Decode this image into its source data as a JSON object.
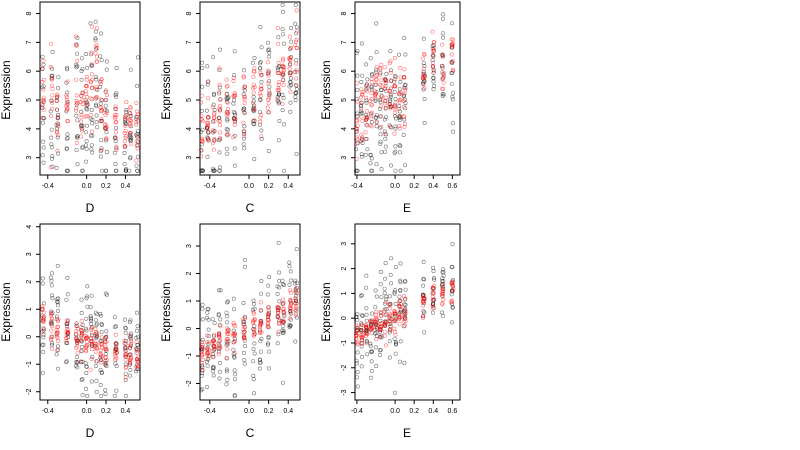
{
  "chart_data": [
    {
      "id": "p1",
      "type": "scatter",
      "xlabel": "D",
      "ylabel": "Expression",
      "xlim": [
        -0.48,
        0.55
      ],
      "ylim": [
        2.4,
        8.4
      ],
      "xticks": [
        -0.4,
        0.0,
        0.2,
        0.4
      ],
      "yticks": [
        3,
        4,
        5,
        6,
        7,
        8
      ],
      "xcols": [
        -0.45,
        -0.36,
        -0.3,
        -0.2,
        -0.1,
        -0.05,
        0.0,
        0.05,
        0.1,
        0.15,
        0.2,
        0.3,
        0.4,
        0.45,
        0.52
      ],
      "black": {
        "mean": [
          4.9,
          5.0,
          4.6,
          4.3,
          4.8,
          4.2,
          4.6,
          4.9,
          5.2,
          4.7,
          4.3,
          4.0,
          3.8,
          3.9,
          3.6
        ],
        "spread": [
          1.3,
          1.3,
          1.2,
          1.2,
          1.3,
          1.2,
          1.2,
          1.3,
          1.3,
          1.2,
          1.2,
          1.1,
          1.1,
          1.0,
          1.0
        ]
      },
      "red": {
        "mean": [
          5.6,
          5.1,
          4.7,
          4.5,
          5.3,
          4.5,
          5.0,
          5.6,
          6.1,
          5.0,
          4.3,
          3.9,
          4.0,
          4.1,
          3.8
        ],
        "spread": [
          0.7,
          0.7,
          0.6,
          0.6,
          0.7,
          0.6,
          0.6,
          0.7,
          0.8,
          0.6,
          0.6,
          0.6,
          0.6,
          0.5,
          0.5
        ]
      }
    },
    {
      "id": "p2",
      "type": "scatter",
      "xlabel": "C",
      "ylabel": "Expression",
      "xlim": [
        -0.5,
        0.52
      ],
      "ylim": [
        2.4,
        8.4
      ],
      "xticks": [
        -0.4,
        0.0,
        0.2,
        0.4
      ],
      "yticks": [
        3,
        4,
        5,
        6,
        7,
        8
      ],
      "xcols": [
        -0.48,
        -0.42,
        -0.36,
        -0.3,
        -0.22,
        -0.15,
        -0.05,
        0.05,
        0.12,
        0.2,
        0.3,
        0.35,
        0.42,
        0.48
      ],
      "black": {
        "mean": [
          3.8,
          3.6,
          3.6,
          4.1,
          4.4,
          4.4,
          4.8,
          4.8,
          5.0,
          5.1,
          5.4,
          5.6,
          5.8,
          6.0
        ],
        "spread": [
          1.2,
          1.1,
          1.2,
          1.2,
          1.2,
          1.2,
          1.2,
          1.2,
          1.2,
          1.2,
          1.2,
          1.2,
          1.2,
          1.2
        ]
      },
      "red": {
        "mean": [
          4.2,
          4.2,
          4.3,
          4.6,
          4.7,
          4.8,
          5.0,
          5.1,
          5.2,
          5.4,
          5.6,
          5.9,
          6.3,
          6.7
        ],
        "spread": [
          0.6,
          0.6,
          0.6,
          0.6,
          0.6,
          0.6,
          0.6,
          0.6,
          0.6,
          0.6,
          0.6,
          0.6,
          0.6,
          0.6
        ]
      }
    },
    {
      "id": "p3",
      "type": "scatter",
      "xlabel": "E",
      "ylabel": "Expression",
      "xlim": [
        -0.42,
        0.68
      ],
      "ylim": [
        2.4,
        8.4
      ],
      "xticks": [
        -0.4,
        0.0,
        0.2,
        0.4,
        0.6
      ],
      "yticks": [
        3,
        4,
        5,
        6,
        7,
        8
      ],
      "xcols": [
        -0.4,
        -0.35,
        -0.3,
        -0.25,
        -0.2,
        -0.15,
        -0.1,
        -0.05,
        0.0,
        0.05,
        0.1,
        0.3,
        0.4,
        0.5,
        0.6
      ],
      "black": {
        "mean": [
          4.2,
          4.3,
          4.4,
          4.5,
          4.6,
          4.7,
          4.8,
          4.8,
          4.7,
          4.8,
          4.9,
          5.8,
          6.2,
          6.3,
          6.0
        ],
        "spread": [
          1.2,
          1.2,
          1.2,
          1.2,
          1.2,
          1.2,
          1.2,
          1.2,
          1.2,
          1.2,
          1.2,
          0.8,
          0.7,
          0.7,
          0.8
        ]
      },
      "red": {
        "mean": [
          4.3,
          4.5,
          4.6,
          4.8,
          4.9,
          5.0,
          5.1,
          5.0,
          4.9,
          5.0,
          5.2,
          6.0,
          6.3,
          6.4,
          6.4
        ],
        "spread": [
          0.7,
          0.7,
          0.7,
          0.7,
          0.7,
          0.7,
          0.7,
          0.7,
          0.7,
          0.7,
          0.7,
          0.5,
          0.5,
          0.5,
          0.5
        ]
      }
    },
    {
      "id": "p4",
      "type": "scatter",
      "xlabel": "D",
      "ylabel": "Expression",
      "xlim": [
        -0.48,
        0.55
      ],
      "ylim": [
        -2.3,
        4.1
      ],
      "xticks": [
        -0.4,
        0.0,
        0.2,
        0.4
      ],
      "yticks": [
        -2,
        -1,
        0,
        1,
        2,
        3,
        4
      ],
      "xcols": [
        -0.45,
        -0.36,
        -0.3,
        -0.2,
        -0.1,
        -0.05,
        0.0,
        0.05,
        0.1,
        0.15,
        0.2,
        0.3,
        0.4,
        0.45,
        0.52
      ],
      "black": {
        "mean": [
          0.5,
          0.4,
          0.3,
          0.1,
          0.0,
          -0.1,
          -0.1,
          -0.2,
          -0.3,
          -0.3,
          -0.4,
          -0.5,
          -0.6,
          -0.6,
          -0.7
        ],
        "spread": [
          1.0,
          1.0,
          1.0,
          0.9,
          0.9,
          0.9,
          0.9,
          0.9,
          0.9,
          0.9,
          0.9,
          0.8,
          0.8,
          0.8,
          0.7
        ]
      },
      "red": {
        "mean": [
          0.5,
          0.35,
          0.2,
          0.1,
          0.05,
          -0.05,
          -0.15,
          -0.2,
          -0.25,
          -0.3,
          -0.4,
          -0.5,
          -0.6,
          -0.65,
          -0.75
        ],
        "spread": [
          0.3,
          0.3,
          0.3,
          0.3,
          0.3,
          0.3,
          0.3,
          0.3,
          0.3,
          0.3,
          0.3,
          0.3,
          0.3,
          0.3,
          0.3
        ]
      }
    },
    {
      "id": "p5",
      "type": "scatter",
      "xlabel": "C",
      "ylabel": "Expression",
      "xlim": [
        -0.5,
        0.52
      ],
      "ylim": [
        -2.6,
        3.8
      ],
      "xticks": [
        -0.4,
        0.0,
        0.2,
        0.4
      ],
      "yticks": [
        -2,
        -1,
        0,
        1,
        2,
        3
      ],
      "xcols": [
        -0.48,
        -0.42,
        -0.36,
        -0.3,
        -0.22,
        -0.15,
        -0.05,
        0.05,
        0.12,
        0.2,
        0.3,
        0.35,
        0.42,
        0.48
      ],
      "black": {
        "mean": [
          -1.0,
          -0.9,
          -0.8,
          -0.6,
          -0.4,
          -0.3,
          -0.1,
          0.0,
          0.1,
          0.2,
          0.4,
          0.5,
          0.6,
          0.7
        ],
        "spread": [
          1.0,
          1.0,
          1.0,
          1.0,
          1.0,
          1.0,
          1.0,
          1.0,
          1.0,
          1.0,
          1.0,
          1.0,
          1.0,
          1.0
        ]
      },
      "red": {
        "mean": [
          -0.9,
          -0.8,
          -0.7,
          -0.5,
          -0.35,
          -0.2,
          0.0,
          0.1,
          0.2,
          0.3,
          0.5,
          0.6,
          0.8,
          0.9
        ],
        "spread": [
          0.3,
          0.3,
          0.3,
          0.3,
          0.3,
          0.3,
          0.3,
          0.3,
          0.3,
          0.3,
          0.3,
          0.3,
          0.3,
          0.3
        ]
      }
    },
    {
      "id": "p6",
      "type": "scatter",
      "xlabel": "E",
      "ylabel": "Expression",
      "xlim": [
        -0.42,
        0.68
      ],
      "ylim": [
        -3.3,
        3.8
      ],
      "xticks": [
        -0.4,
        0.0,
        0.2,
        0.4,
        0.6
      ],
      "yticks": [
        -3,
        -2,
        -1,
        0,
        1,
        2,
        3
      ],
      "xcols": [
        -0.4,
        -0.35,
        -0.3,
        -0.25,
        -0.2,
        -0.15,
        -0.1,
        -0.05,
        0.0,
        0.05,
        0.1,
        0.3,
        0.4,
        0.5,
        0.6
      ],
      "black": {
        "mean": [
          -0.8,
          -0.7,
          -0.6,
          -0.5,
          -0.4,
          -0.3,
          -0.2,
          -0.1,
          0.0,
          0.1,
          0.2,
          0.7,
          0.9,
          1.0,
          1.1
        ],
        "spread": [
          1.1,
          1.1,
          1.1,
          1.1,
          1.0,
          1.0,
          1.0,
          1.0,
          1.0,
          1.0,
          1.0,
          0.6,
          0.6,
          0.6,
          0.6
        ]
      },
      "red": {
        "mean": [
          -0.7,
          -0.6,
          -0.5,
          -0.4,
          -0.3,
          -0.2,
          -0.1,
          0.0,
          0.05,
          0.15,
          0.25,
          0.8,
          0.9,
          1.0,
          1.2
        ],
        "spread": [
          0.3,
          0.3,
          0.3,
          0.3,
          0.3,
          0.3,
          0.3,
          0.3,
          0.3,
          0.3,
          0.3,
          0.3,
          0.3,
          0.3,
          0.3
        ]
      }
    }
  ],
  "colors": {
    "black_points": "#000000",
    "red_points": "#ff0000",
    "axis": "#000000",
    "background": "#ffffff"
  }
}
